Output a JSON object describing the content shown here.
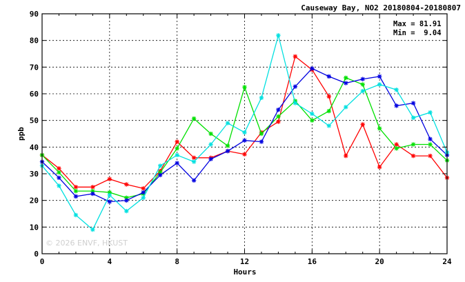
{
  "chart_data": {
    "type": "line",
    "title": "Causeway Bay, NO2 20180804-20180807",
    "xlabel": "Hours",
    "ylabel": "ppb",
    "xlim": [
      0,
      24
    ],
    "ylim": [
      0,
      90
    ],
    "x_ticks": [
      0,
      4,
      8,
      12,
      16,
      20,
      24
    ],
    "y_ticks": [
      0,
      10,
      20,
      30,
      40,
      50,
      60,
      70,
      80,
      90
    ],
    "grid": true,
    "stats": {
      "max_label": "Max = 81.91",
      "min_label": "Min =  9.04"
    },
    "watermark": "© 2026  ENVF, HKUST",
    "x": [
      0,
      1,
      2,
      3,
      4,
      5,
      6,
      7,
      8,
      9,
      10,
      11,
      12,
      13,
      14,
      15,
      16,
      17,
      18,
      19,
      20,
      21,
      22,
      23,
      24
    ],
    "series": [
      {
        "color": "#ff0000",
        "values": [
          37,
          32,
          25,
          25,
          28,
          26,
          24.5,
          31,
          42,
          36,
          36,
          38.5,
          37.3,
          45.5,
          49.5,
          74,
          69,
          59,
          36.7,
          48.5,
          32.5,
          41,
          36.7,
          36.7,
          28.5
        ]
      },
      {
        "color": "#00e000",
        "values": [
          37,
          30.5,
          23.5,
          23.5,
          23,
          21,
          22.5,
          30.5,
          39.5,
          50.7,
          45,
          40.5,
          62.5,
          45,
          51.5,
          57.3,
          50,
          53.5,
          66,
          63.5,
          47,
          39.5,
          41,
          41,
          35
        ]
      },
      {
        "color": "#0000e0",
        "values": [
          34.5,
          28.5,
          21.5,
          22.5,
          19.5,
          20,
          23,
          29.5,
          34,
          27.5,
          35.5,
          38.5,
          42.5,
          42,
          54,
          62.7,
          69.5,
          66.5,
          64,
          65.5,
          66.5,
          55.5,
          56.5,
          43,
          37
        ]
      },
      {
        "color": "#00e0e0",
        "values": [
          33,
          25.5,
          14.5,
          9.04,
          22,
          16,
          21,
          33,
          37,
          34.5,
          41,
          49,
          45.5,
          58.5,
          81.91,
          56.5,
          52.5,
          48,
          55,
          61,
          63.5,
          61.5,
          51,
          53,
          38
        ]
      }
    ]
  }
}
